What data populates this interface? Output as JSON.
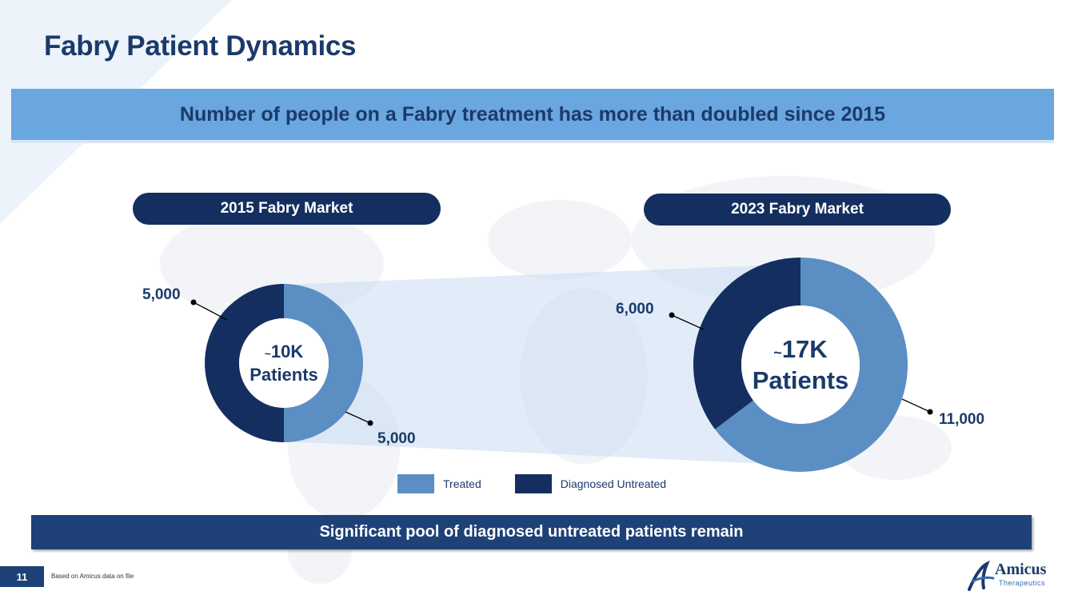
{
  "slide": {
    "title": "Fabry Patient Dynamics",
    "banner": "Number of people on a Fabry treatment has more than doubled since 2015",
    "bottom_banner": "Significant pool of diagnosed untreated patients remain",
    "page_number": "11",
    "footnote": "Based on Amicus data on file"
  },
  "logo": {
    "name": "Amicus",
    "subtitle": "Therapeutics"
  },
  "colors": {
    "treated": "#5b8ec3",
    "untreated": "#142f5f",
    "accent": "#1b3a6b"
  },
  "chart_data": [
    {
      "type": "pie",
      "title": "2015 Fabry Market",
      "center_label_top": "10K",
      "center_label_bottom": "Patients",
      "center_prefix": "~",
      "categories": [
        "Treated",
        "Diagnosed Untreated"
      ],
      "values": [
        5000,
        5000
      ],
      "data_labels": [
        "5,000",
        "5,000"
      ]
    },
    {
      "type": "pie",
      "title": "2023 Fabry Market",
      "center_label_top": "17K",
      "center_label_bottom": "Patients",
      "center_prefix": "~",
      "categories": [
        "Treated",
        "Diagnosed Untreated"
      ],
      "values": [
        11000,
        6000
      ],
      "data_labels": [
        "11,000",
        "6,000"
      ]
    }
  ],
  "legend": [
    {
      "label": "Treated",
      "color": "#5b8ec3"
    },
    {
      "label": "Diagnosed Untreated",
      "color": "#142f5f"
    }
  ]
}
